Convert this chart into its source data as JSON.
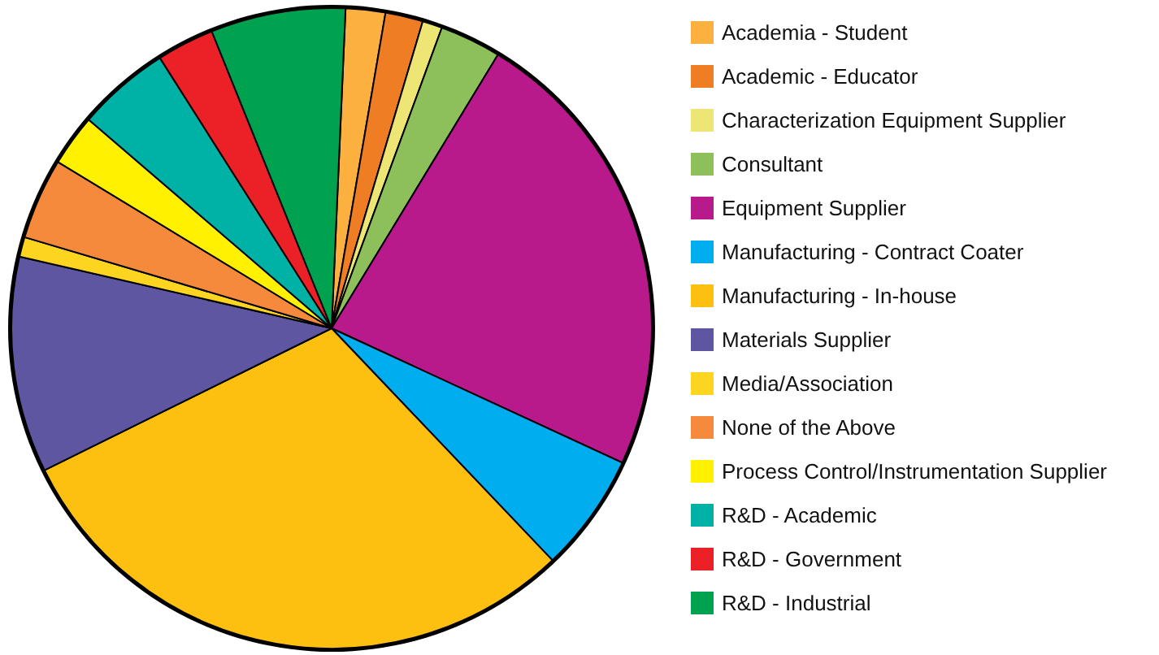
{
  "chart_data": {
    "type": "pie",
    "categories": [
      "Academia - Student",
      "Academic - Educator",
      "Characterization Equipment Supplier",
      "Consultant",
      "Equipment Supplier",
      "Manufacturing - Contract Coater",
      "Manufacturing - In-house",
      "Materials Supplier",
      "Media/Association",
      "None of the Above",
      "Process Control/Instrumentation Supplier",
      "R&D - Academic",
      "R&D - Government",
      "R&D - Industrial"
    ],
    "values": [
      2.0,
      1.9,
      1.0,
      3.1,
      23.2,
      6.0,
      29.8,
      10.9,
      1.0,
      4.1,
      2.6,
      4.7,
      2.9,
      6.8
    ],
    "colors": [
      "#fbb040",
      "#ee7d23",
      "#ede574",
      "#8dc05a",
      "#b8198b",
      "#00aeef",
      "#fdc010",
      "#5f56a2",
      "#fdd520",
      "#f58a3c",
      "#fff100",
      "#00b2a5",
      "#ec2127",
      "#00a14f"
    ],
    "legend": "right"
  }
}
